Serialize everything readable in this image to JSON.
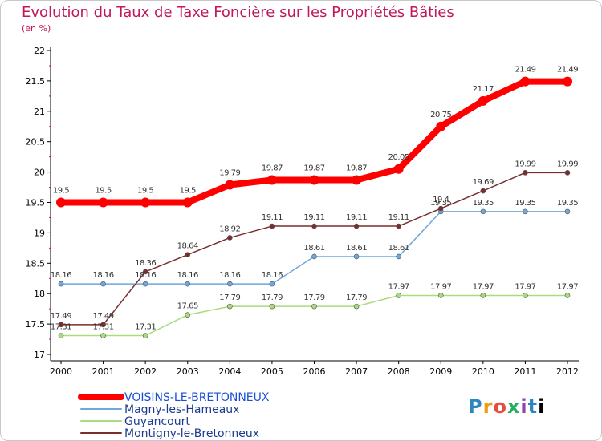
{
  "title": "Evolution du Taux de Taxe Foncière sur les Propriétés Bâties",
  "subtitle": "(en %)",
  "logo": "Proxiti",
  "chart_data": {
    "type": "line",
    "title": "Evolution du Taux de Taxe Foncière sur les Propriétés Bâties",
    "ylabel": "(en %)",
    "x": [
      "2000",
      "2001",
      "2002",
      "2003",
      "2004",
      "2005",
      "2006",
      "2007",
      "2008",
      "2009",
      "2010",
      "2011",
      "2012"
    ],
    "yticks": [
      "17",
      "17.5",
      "18",
      "18.5",
      "19",
      "19.5",
      "20",
      "20.5",
      "21",
      "21.5",
      "22"
    ],
    "ylim": [
      17,
      22
    ],
    "grid": false,
    "legend_position": "bottom-left",
    "series": [
      {
        "name": "VOISINS-LE-BRETONNEUX",
        "color": "#ff0000",
        "values": [
          19.5,
          19.5,
          19.5,
          19.5,
          19.79,
          19.87,
          19.87,
          19.87,
          20.05,
          20.75,
          21.17,
          21.49,
          21.49
        ],
        "labels": [
          "19.5",
          "19.5",
          "19.5",
          "19.5",
          "19.79",
          "19.87",
          "19.87",
          "19.87",
          "20.05",
          "20.75",
          "21.17",
          "21.49",
          "21.49"
        ]
      },
      {
        "name": "Magny-les-Hameaux",
        "color": "#6fa8dc",
        "values": [
          18.16,
          18.16,
          18.16,
          18.16,
          18.16,
          18.16,
          18.61,
          18.61,
          18.61,
          19.35,
          19.35,
          19.35,
          19.35
        ],
        "labels": [
          "18.16",
          "18.16",
          "18.16",
          "18.16",
          "18.16",
          "18.16",
          "18.61",
          "18.61",
          "18.61",
          "19.35",
          "19.35",
          "19.35",
          "19.35"
        ]
      },
      {
        "name": "Guyancourt",
        "color": "#a9dc7a",
        "values": [
          17.31,
          17.31,
          17.31,
          17.65,
          17.79,
          17.79,
          17.79,
          17.79,
          17.97,
          17.97,
          17.97,
          17.97,
          17.97
        ],
        "labels": [
          "17.31",
          "17.31",
          "17.31",
          "17.65",
          "17.79",
          "17.79",
          "17.79",
          "17.79",
          "17.97",
          "17.97",
          "17.97",
          "17.97",
          "17.97"
        ]
      },
      {
        "name": "Montigny-le-Bretonneux",
        "color": "#7b2d2d",
        "values": [
          17.49,
          17.49,
          18.36,
          18.64,
          18.92,
          19.11,
          19.11,
          19.11,
          19.11,
          19.4,
          19.69,
          19.99,
          19.99
        ],
        "labels": [
          "17.49",
          "17.49",
          "18.36",
          "18.64",
          "18.92",
          "19.11",
          "19.11",
          "19.11",
          "19.11",
          "19.4",
          "19.69",
          "19.99",
          "19.99"
        ]
      }
    ]
  }
}
